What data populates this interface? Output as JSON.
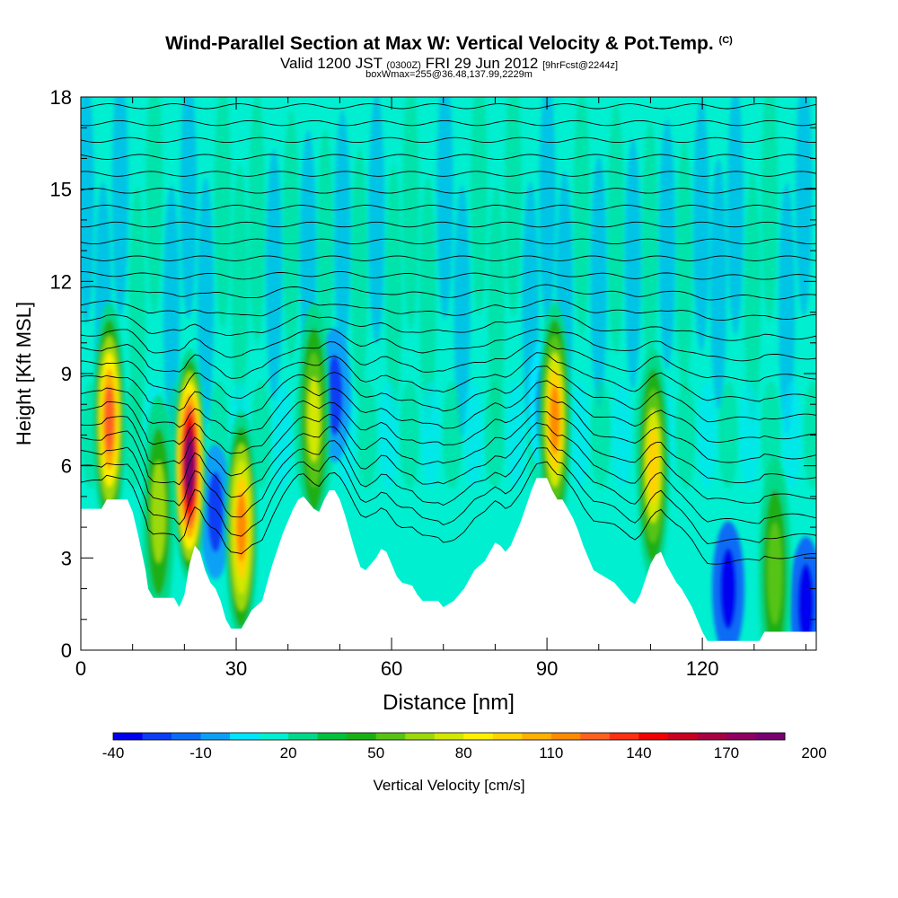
{
  "header": {
    "title_main": "Wind-Parallel Section at Max W: Vertical Velocity & Pot.Temp.",
    "title_mark": "(C)",
    "valid_prefix": "Valid 1200 JST",
    "valid_utc": "(0300Z)",
    "valid_date": "FRI 29 Jun 2012",
    "valid_fcst": "[9hrFcst@2244z]",
    "box_info": "boxWmax=255@36.48,137.99,2229m"
  },
  "chart_data": {
    "type": "heatmap",
    "xlabel": "Distance [nm]",
    "ylabel": "Height [Kft MSL]",
    "xlim": [
      0,
      142
    ],
    "ylim": [
      0,
      18
    ],
    "x_ticks": [
      0,
      30,
      60,
      90,
      120
    ],
    "y_ticks": [
      0,
      3,
      6,
      9,
      12,
      15,
      18
    ],
    "colorbar": {
      "label": "Vertical Velocity [cm/s]",
      "min": -40,
      "step": 10,
      "tick_labels": [
        "-40",
        "-10",
        "20",
        "50",
        "80",
        "110",
        "140",
        "170",
        "200"
      ],
      "colors": [
        "#0000f0",
        "#0a3df5",
        "#0a6cf5",
        "#0aa0f7",
        "#00e4ff",
        "#00efd0",
        "#00d98a",
        "#00c03c",
        "#1ab014",
        "#57c414",
        "#9bd90c",
        "#d2e800",
        "#fff000",
        "#ffd200",
        "#ffb000",
        "#ff8a00",
        "#ff6020",
        "#ff3010",
        "#f00000",
        "#c80020",
        "#a80040",
        "#900060",
        "#780070"
      ]
    },
    "terrain_profile_kft": [
      [
        0,
        4.6
      ],
      [
        4,
        4.6
      ],
      [
        5,
        4.9
      ],
      [
        9,
        4.9
      ],
      [
        10,
        4.5
      ],
      [
        11,
        3.8
      ],
      [
        12,
        3
      ],
      [
        12.5,
        2.6
      ],
      [
        13,
        2
      ],
      [
        14,
        1.7
      ],
      [
        18,
        1.7
      ],
      [
        19,
        1.4
      ],
      [
        20,
        1.8
      ],
      [
        21,
        2.8
      ],
      [
        22,
        3.4
      ],
      [
        23,
        3.2
      ],
      [
        24,
        2.6
      ],
      [
        25,
        2.2
      ],
      [
        26,
        2
      ],
      [
        27,
        1.6
      ],
      [
        28,
        1
      ],
      [
        29,
        0.7
      ],
      [
        31,
        0.7
      ],
      [
        32,
        1
      ],
      [
        33,
        1.3
      ],
      [
        35,
        1.6
      ],
      [
        36,
        2.2
      ],
      [
        37,
        2.8
      ],
      [
        38,
        3.3
      ],
      [
        39,
        3.8
      ],
      [
        40,
        4.2
      ],
      [
        41,
        4.6
      ],
      [
        42,
        4.9
      ],
      [
        43,
        5
      ],
      [
        44,
        4.8
      ],
      [
        45,
        4.6
      ],
      [
        46,
        4.5
      ],
      [
        47,
        4.9
      ],
      [
        48,
        5.2
      ],
      [
        49,
        5.2
      ],
      [
        50,
        4.9
      ],
      [
        51,
        4.4
      ],
      [
        52,
        3.8
      ],
      [
        53,
        3.2
      ],
      [
        54,
        2.7
      ],
      [
        55,
        2.6
      ],
      [
        56,
        2.8
      ],
      [
        57,
        3
      ],
      [
        58,
        3.3
      ],
      [
        59,
        3.2
      ],
      [
        60,
        2.8
      ],
      [
        61,
        2.4
      ],
      [
        62,
        2.2
      ],
      [
        64,
        2.1
      ],
      [
        65,
        1.8
      ],
      [
        66,
        1.6
      ],
      [
        69,
        1.6
      ],
      [
        70,
        1.4
      ],
      [
        72,
        1.6
      ],
      [
        73,
        1.8
      ],
      [
        74,
        2
      ],
      [
        75,
        2.3
      ],
      [
        76,
        2.6
      ],
      [
        78,
        2.9
      ],
      [
        79,
        3.2
      ],
      [
        80,
        3.5
      ],
      [
        81,
        3.4
      ],
      [
        82,
        3.2
      ],
      [
        83,
        3.4
      ],
      [
        84,
        3.8
      ],
      [
        85,
        4.2
      ],
      [
        86,
        4.7
      ],
      [
        87,
        5.2
      ],
      [
        88,
        5.6
      ],
      [
        90,
        5.6
      ],
      [
        91,
        5.2
      ],
      [
        92,
        4.9
      ],
      [
        93,
        4.9
      ],
      [
        94,
        4.6
      ],
      [
        95,
        4.3
      ],
      [
        96,
        3.9
      ],
      [
        97,
        3.4
      ],
      [
        98,
        3
      ],
      [
        99,
        2.6
      ],
      [
        101,
        2.4
      ],
      [
        103,
        2.2
      ],
      [
        104,
        2
      ],
      [
        105,
        1.8
      ],
      [
        106,
        1.6
      ],
      [
        107,
        1.5
      ],
      [
        108,
        1.8
      ],
      [
        109,
        2.3
      ],
      [
        110,
        2.8
      ],
      [
        111,
        3.1
      ],
      [
        112,
        3.2
      ],
      [
        113,
        2.8
      ],
      [
        114,
        2.5
      ],
      [
        115,
        2.2
      ],
      [
        116,
        2
      ],
      [
        117,
        1.7
      ],
      [
        118,
        1.4
      ],
      [
        119,
        1
      ],
      [
        120,
        0.6
      ],
      [
        121,
        0.3
      ],
      [
        131,
        0.3
      ],
      [
        132,
        0.6
      ],
      [
        142,
        0.6
      ]
    ],
    "updraft_cores": [
      {
        "x": 5.5,
        "y": 7.5,
        "w": 120
      },
      {
        "x": 15,
        "y": 4.5,
        "w": 60
      },
      {
        "x": 21,
        "y": 6,
        "w": 185
      },
      {
        "x": 31,
        "y": 4,
        "w": 115
      },
      {
        "x": 45,
        "y": 7.5,
        "w": 75
      },
      {
        "x": 91.5,
        "y": 7.5,
        "w": 110
      },
      {
        "x": 110.5,
        "y": 6,
        "w": 90
      },
      {
        "x": 134,
        "y": 2.5,
        "w": 55
      }
    ],
    "downdraft_cores": [
      {
        "x": 26,
        "y": 4.5,
        "w": -30
      },
      {
        "x": 49,
        "y": 8.3,
        "w": -25
      },
      {
        "x": 89.5,
        "y": 8,
        "w": -20
      },
      {
        "x": 125,
        "y": 2,
        "w": -40
      },
      {
        "x": 140,
        "y": 1.5,
        "w": -35
      }
    ]
  }
}
